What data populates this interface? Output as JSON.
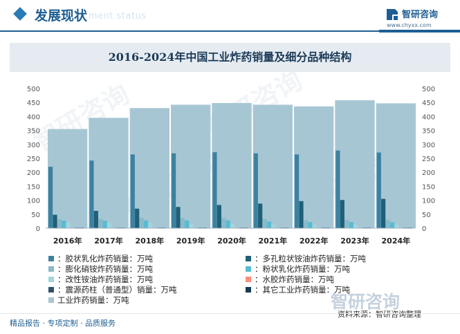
{
  "header": {
    "section_title": "发展现状",
    "ghost_subtitle": "ment status",
    "logo_name": "智研咨询",
    "logo_url": "www.chyxx.com"
  },
  "watermark_text": "智研咨询",
  "watermark_bottom": "智研咨询",
  "source": "资料来源：智研咨询整理",
  "tagline": "精品报告 · 专项定制 · 品质服务",
  "colors": {
    "brand": "#1d5e93",
    "total_bar": "#a7c6d4",
    "series": [
      "#3c82a0",
      "#1f5f78",
      "#8ab9c8",
      "#56bcd3",
      "#a3d4dc",
      "#ff8e7a",
      "#2e5366",
      "#143a52"
    ]
  },
  "chart_data": {
    "type": "bar",
    "title": "2016-2024年中国工业炸药销量及细分品种结构",
    "categories": [
      "2016年",
      "2017年",
      "2018年",
      "2019年",
      "2020年",
      "2021年",
      "2022年",
      "2023年",
      "2024年"
    ],
    "ylim": [
      0,
      500
    ],
    "y_ticks": [
      "0",
      "50",
      "100",
      "150",
      "200",
      "250",
      "300",
      "350",
      "400",
      "450",
      "500"
    ],
    "total": {
      "name": "工业炸药销量：万吨",
      "values": [
        355,
        395,
        430,
        442,
        448,
        442,
        436,
        458,
        447
      ]
    },
    "series": [
      {
        "name": "：胶状乳化炸药销量：万吨",
        "values": [
          220,
          242,
          264,
          268,
          272,
          268,
          264,
          278,
          271
        ]
      },
      {
        "name": "：多孔粒状铵油炸药销量：万吨",
        "values": [
          48,
          62,
          70,
          76,
          83,
          88,
          97,
          101,
          105
        ]
      },
      {
        "name": "：膨化硝铵炸药销量：万吨",
        "values": [
          32,
          33,
          37,
          36,
          36,
          33,
          29,
          30,
          30
        ]
      },
      {
        "name": "：粉状乳化炸药销量：万吨",
        "values": [
          27,
          27,
          28,
          28,
          28,
          24,
          22,
          22,
          21
        ]
      },
      {
        "name": "：改性铵油炸药销量：万吨",
        "values": [
          22,
          19,
          19,
          17,
          16,
          13,
          12,
          13,
          13
        ]
      },
      {
        "name": "：水胶炸药销量：万吨",
        "values": [
          1,
          1,
          1,
          1,
          1,
          1,
          1,
          1,
          1
        ]
      },
      {
        "name": "：震源药柱（普通型）销量：万吨",
        "values": [
          2,
          2,
          2,
          2,
          2,
          2,
          2,
          2,
          2
        ]
      },
      {
        "name": "：其它工业炸药销量：万吨",
        "values": [
          2,
          2,
          2,
          2,
          2,
          2,
          2,
          2,
          2
        ]
      }
    ]
  }
}
